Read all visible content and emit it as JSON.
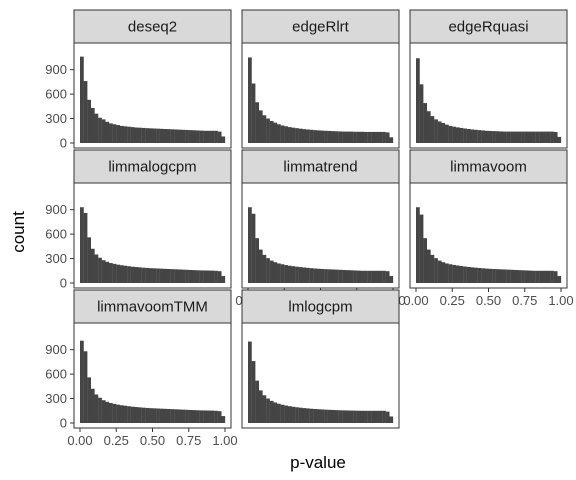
{
  "chart_data": {
    "type": "bar",
    "layout": "facet-grid",
    "xlabel": "p-value",
    "ylabel": "count",
    "xlim": [
      0,
      1
    ],
    "ylim": [
      0,
      1080
    ],
    "x_ticks": [
      "0.00",
      "0.25",
      "0.50",
      "0.75",
      "1.00"
    ],
    "y_ticks": [
      "0",
      "300",
      "600",
      "900"
    ],
    "x_tick_values": [
      0,
      0.25,
      0.5,
      0.75,
      1
    ],
    "y_tick_values": [
      0,
      300,
      600,
      900
    ],
    "bins": 40,
    "bar_color": "#454545",
    "strip_fill": "#d9d9d9",
    "panel_border": "#333333",
    "grid": false,
    "panels": [
      {
        "name": "deseq2",
        "values": [
          1060,
          760,
          530,
          430,
          360,
          310,
          290,
          260,
          240,
          230,
          220,
          210,
          205,
          200,
          195,
          190,
          188,
          185,
          182,
          180,
          178,
          176,
          174,
          172,
          170,
          168,
          166,
          164,
          162,
          160,
          158,
          156,
          154,
          152,
          150,
          150,
          150,
          150,
          140,
          80
        ]
      },
      {
        "name": "edgeRlrt",
        "values": [
          1050,
          730,
          500,
          400,
          340,
          300,
          270,
          250,
          230,
          215,
          205,
          195,
          188,
          182,
          176,
          170,
          166,
          162,
          158,
          155,
          152,
          150,
          148,
          146,
          144,
          142,
          140,
          140,
          140,
          138,
          138,
          138,
          136,
          136,
          136,
          136,
          136,
          136,
          130,
          70
        ]
      },
      {
        "name": "edgeRquasi",
        "values": [
          1040,
          720,
          490,
          390,
          330,
          290,
          265,
          245,
          225,
          210,
          200,
          192,
          185,
          178,
          172,
          166,
          162,
          158,
          154,
          150,
          148,
          146,
          144,
          142,
          140,
          140,
          140,
          140,
          140,
          140,
          140,
          140,
          140,
          140,
          140,
          140,
          140,
          140,
          135,
          75
        ]
      },
      {
        "name": "limmalogcpm",
        "values": [
          930,
          860,
          560,
          420,
          350,
          310,
          280,
          260,
          245,
          235,
          225,
          218,
          212,
          206,
          200,
          196,
          192,
          188,
          185,
          182,
          180,
          178,
          176,
          174,
          172,
          170,
          168,
          166,
          164,
          162,
          160,
          158,
          156,
          155,
          154,
          153,
          152,
          150,
          145,
          85
        ]
      },
      {
        "name": "limmatrend",
        "values": [
          930,
          850,
          550,
          410,
          345,
          305,
          275,
          255,
          240,
          230,
          220,
          212,
          206,
          200,
          195,
          190,
          186,
          182,
          178,
          175,
          172,
          170,
          168,
          166,
          164,
          162,
          160,
          158,
          156,
          154,
          152,
          150,
          150,
          150,
          150,
          150,
          150,
          150,
          145,
          85
        ]
      },
      {
        "name": "limmavoom",
        "values": [
          930,
          840,
          550,
          410,
          345,
          305,
          275,
          255,
          240,
          230,
          222,
          215,
          208,
          202,
          197,
          192,
          188,
          184,
          180,
          177,
          174,
          172,
          170,
          168,
          166,
          164,
          162,
          160,
          158,
          156,
          154,
          152,
          150,
          150,
          150,
          150,
          150,
          150,
          145,
          85
        ]
      },
      {
        "name": "limmavoomTMM",
        "values": [
          1010,
          880,
          560,
          420,
          350,
          310,
          280,
          260,
          245,
          235,
          225,
          218,
          212,
          206,
          200,
          196,
          192,
          188,
          185,
          182,
          180,
          178,
          176,
          174,
          172,
          170,
          168,
          166,
          164,
          162,
          160,
          158,
          156,
          155,
          154,
          153,
          152,
          150,
          145,
          85
        ]
      },
      {
        "name": "lmlogcpm",
        "values": [
          1000,
          760,
          520,
          400,
          340,
          300,
          272,
          252,
          236,
          224,
          214,
          206,
          199,
          193,
          188,
          183,
          179,
          175,
          172,
          169,
          166,
          164,
          162,
          160,
          158,
          156,
          155,
          154,
          153,
          152,
          151,
          150,
          150,
          150,
          150,
          150,
          150,
          150,
          140,
          80
        ]
      }
    ]
  }
}
